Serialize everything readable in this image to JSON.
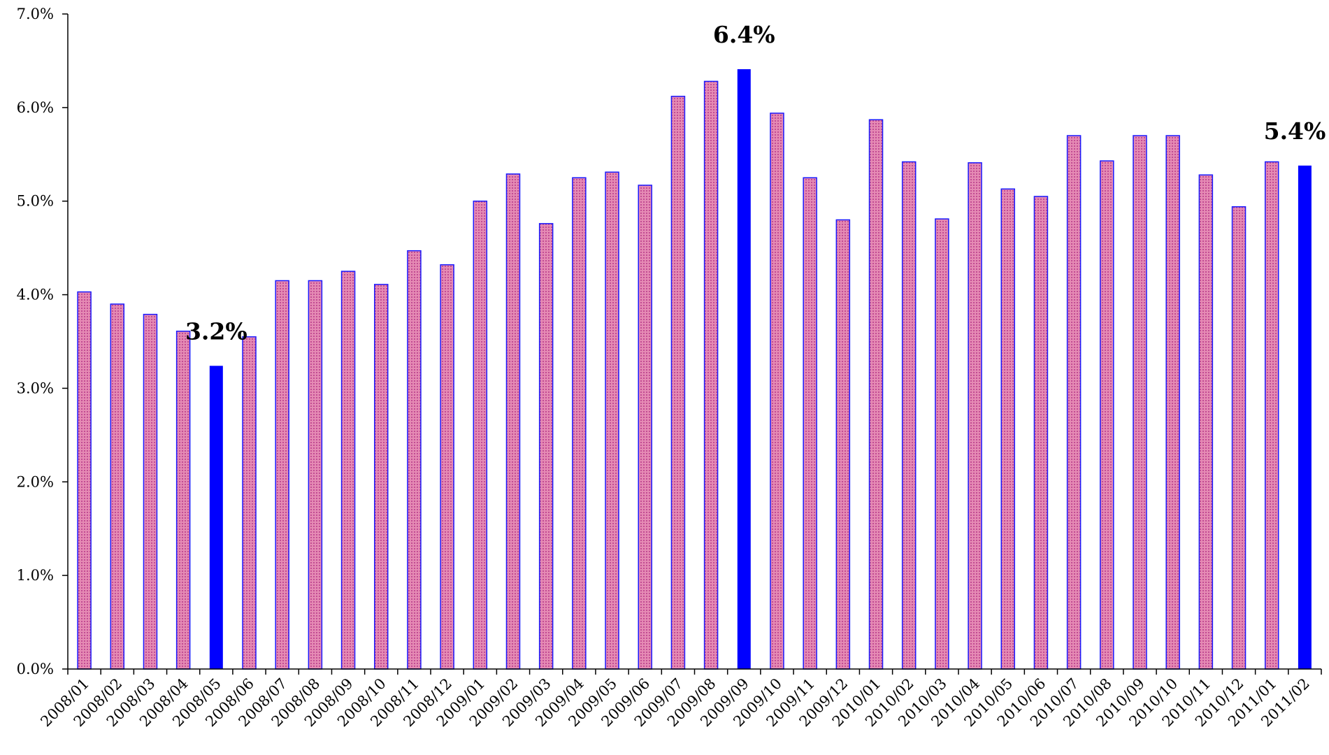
{
  "chart_data": {
    "type": "bar",
    "title": "",
    "xlabel": "",
    "ylabel": "",
    "ylim": [
      0,
      7
    ],
    "yticks": [
      "0.0%",
      "1.0%",
      "2.0%",
      "3.0%",
      "4.0%",
      "5.0%",
      "6.0%",
      "7.0%"
    ],
    "grid": false,
    "categories": [
      "2008/01",
      "2008/02",
      "2008/03",
      "2008/04",
      "2008/05",
      "2008/06",
      "2008/07",
      "2008/08",
      "2008/09",
      "2008/10",
      "2008/11",
      "2008/12",
      "2009/01",
      "2009/02",
      "2009/03",
      "2009/04",
      "2009/05",
      "2009/06",
      "2009/07",
      "2009/08",
      "2009/09",
      "2009/10",
      "2009/11",
      "2009/12",
      "2010/01",
      "2010/02",
      "2010/03",
      "2010/04",
      "2010/05",
      "2010/06",
      "2010/07",
      "2010/08",
      "2010/09",
      "2010/10",
      "2010/11",
      "2010/12",
      "2011/01",
      "2011/02"
    ],
    "values": [
      4.03,
      3.9,
      3.79,
      3.61,
      3.24,
      3.55,
      4.15,
      4.15,
      4.25,
      4.11,
      4.47,
      4.32,
      5.0,
      5.29,
      4.76,
      5.25,
      5.31,
      5.17,
      6.12,
      6.28,
      6.41,
      5.94,
      5.25,
      4.8,
      5.87,
      5.42,
      4.81,
      5.41,
      5.13,
      5.05,
      5.7,
      5.43,
      5.7,
      5.7,
      5.28,
      4.94,
      5.42,
      5.38
    ],
    "highlight_indices": [
      4,
      20,
      37
    ],
    "annotations": [
      {
        "index": 4,
        "text": "3.2%"
      },
      {
        "index": 20,
        "text": "6.4%"
      },
      {
        "index": 37,
        "text": "5.4%"
      }
    ],
    "colors": {
      "bar_fill": "#e07aa8",
      "bar_border": "#1a1aff",
      "highlight_fill": "#0000ff",
      "axis": "#000000"
    }
  }
}
